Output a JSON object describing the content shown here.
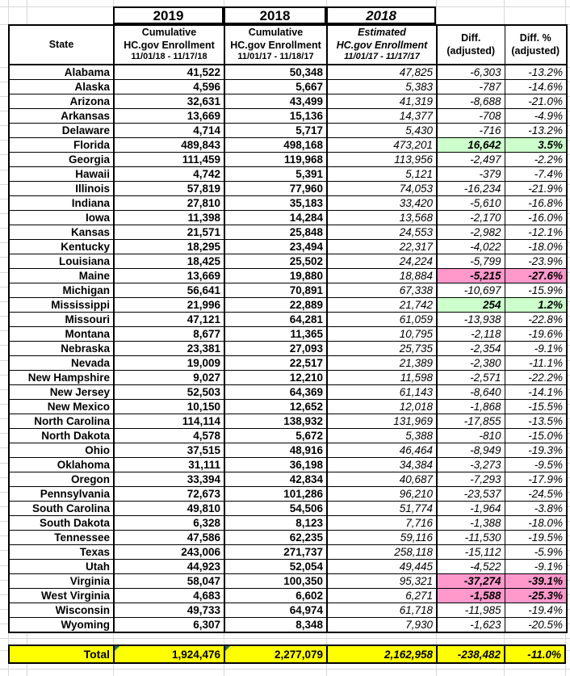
{
  "header": {
    "year_2019": "2019",
    "year_2018": "2018",
    "year_2018_est": "2018",
    "state_label": "State",
    "col_2019": [
      "Cumulative",
      "HC.gov Enrollment",
      "11/01/18 - 11/17/18"
    ],
    "col_2018": [
      "Cumulative",
      "HC.gov Enrollment",
      "11/01/17 - 11/18/17"
    ],
    "col_2018_est": [
      "Estimated",
      "HC.gov Enrollment",
      "11/01/17 - 11/17/17"
    ],
    "col_diff": [
      "Diff.",
      "(adjusted)"
    ],
    "col_diff_pct": [
      "Diff. %",
      "(adjusted)"
    ]
  },
  "rows": [
    {
      "state": "Alabama",
      "y2019": "41,522",
      "y2018": "50,348",
      "est": "47,825",
      "diff": "-6,303",
      "pct": "-13.2%",
      "hl": ""
    },
    {
      "state": "Alaska",
      "y2019": "4,596",
      "y2018": "5,667",
      "est": "5,383",
      "diff": "-787",
      "pct": "-14.6%",
      "hl": ""
    },
    {
      "state": "Arizona",
      "y2019": "32,631",
      "y2018": "43,499",
      "est": "41,319",
      "diff": "-8,688",
      "pct": "-21.0%",
      "hl": ""
    },
    {
      "state": "Arkansas",
      "y2019": "13,669",
      "y2018": "15,136",
      "est": "14,377",
      "diff": "-708",
      "pct": "-4.9%",
      "hl": ""
    },
    {
      "state": "Delaware",
      "y2019": "4,714",
      "y2018": "5,717",
      "est": "5,430",
      "diff": "-716",
      "pct": "-13.2%",
      "hl": ""
    },
    {
      "state": "Florida",
      "y2019": "489,843",
      "y2018": "498,168",
      "est": "473,201",
      "diff": "16,642",
      "pct": "3.5%",
      "hl": "green"
    },
    {
      "state": "Georgia",
      "y2019": "111,459",
      "y2018": "119,968",
      "est": "113,956",
      "diff": "-2,497",
      "pct": "-2.2%",
      "hl": ""
    },
    {
      "state": "Hawaii",
      "y2019": "4,742",
      "y2018": "5,391",
      "est": "5,121",
      "diff": "-379",
      "pct": "-7.4%",
      "hl": ""
    },
    {
      "state": "Illinois",
      "y2019": "57,819",
      "y2018": "77,960",
      "est": "74,053",
      "diff": "-16,234",
      "pct": "-21.9%",
      "hl": ""
    },
    {
      "state": "Indiana",
      "y2019": "27,810",
      "y2018": "35,183",
      "est": "33,420",
      "diff": "-5,610",
      "pct": "-16.8%",
      "hl": ""
    },
    {
      "state": "Iowa",
      "y2019": "11,398",
      "y2018": "14,284",
      "est": "13,568",
      "diff": "-2,170",
      "pct": "-16.0%",
      "hl": ""
    },
    {
      "state": "Kansas",
      "y2019": "21,571",
      "y2018": "25,848",
      "est": "24,553",
      "diff": "-2,982",
      "pct": "-12.1%",
      "hl": ""
    },
    {
      "state": "Kentucky",
      "y2019": "18,295",
      "y2018": "23,494",
      "est": "22,317",
      "diff": "-4,022",
      "pct": "-18.0%",
      "hl": ""
    },
    {
      "state": "Louisiana",
      "y2019": "18,425",
      "y2018": "25,502",
      "est": "24,224",
      "diff": "-5,799",
      "pct": "-23.9%",
      "hl": ""
    },
    {
      "state": "Maine",
      "y2019": "13,669",
      "y2018": "19,880",
      "est": "18,884",
      "diff": "-5,215",
      "pct": "-27.6%",
      "hl": "pink"
    },
    {
      "state": "Michigan",
      "y2019": "56,641",
      "y2018": "70,891",
      "est": "67,338",
      "diff": "-10,697",
      "pct": "-15.9%",
      "hl": ""
    },
    {
      "state": "Mississippi",
      "y2019": "21,996",
      "y2018": "22,889",
      "est": "21,742",
      "diff": "254",
      "pct": "1.2%",
      "hl": "green"
    },
    {
      "state": "Missouri",
      "y2019": "47,121",
      "y2018": "64,281",
      "est": "61,059",
      "diff": "-13,938",
      "pct": "-22.8%",
      "hl": ""
    },
    {
      "state": "Montana",
      "y2019": "8,677",
      "y2018": "11,365",
      "est": "10,795",
      "diff": "-2,118",
      "pct": "-19.6%",
      "hl": ""
    },
    {
      "state": "Nebraska",
      "y2019": "23,381",
      "y2018": "27,093",
      "est": "25,735",
      "diff": "-2,354",
      "pct": "-9.1%",
      "hl": ""
    },
    {
      "state": "Nevada",
      "y2019": "19,009",
      "y2018": "22,517",
      "est": "21,389",
      "diff": "-2,380",
      "pct": "-11.1%",
      "hl": ""
    },
    {
      "state": "New Hampshire",
      "y2019": "9,027",
      "y2018": "12,210",
      "est": "11,598",
      "diff": "-2,571",
      "pct": "-22.2%",
      "hl": ""
    },
    {
      "state": "New Jersey",
      "y2019": "52,503",
      "y2018": "64,369",
      "est": "61,143",
      "diff": "-8,640",
      "pct": "-14.1%",
      "hl": ""
    },
    {
      "state": "New Mexico",
      "y2019": "10,150",
      "y2018": "12,652",
      "est": "12,018",
      "diff": "-1,868",
      "pct": "-15.5%",
      "hl": ""
    },
    {
      "state": "North Carolina",
      "y2019": "114,114",
      "y2018": "138,932",
      "est": "131,969",
      "diff": "-17,855",
      "pct": "-13.5%",
      "hl": ""
    },
    {
      "state": "North Dakota",
      "y2019": "4,578",
      "y2018": "5,672",
      "est": "5,388",
      "diff": "-810",
      "pct": "-15.0%",
      "hl": ""
    },
    {
      "state": "Ohio",
      "y2019": "37,515",
      "y2018": "48,916",
      "est": "46,464",
      "diff": "-8,949",
      "pct": "-19.3%",
      "hl": ""
    },
    {
      "state": "Oklahoma",
      "y2019": "31,111",
      "y2018": "36,198",
      "est": "34,384",
      "diff": "-3,273",
      "pct": "-9.5%",
      "hl": ""
    },
    {
      "state": "Oregon",
      "y2019": "33,394",
      "y2018": "42,834",
      "est": "40,687",
      "diff": "-7,293",
      "pct": "-17.9%",
      "hl": ""
    },
    {
      "state": "Pennsylvania",
      "y2019": "72,673",
      "y2018": "101,286",
      "est": "96,210",
      "diff": "-23,537",
      "pct": "-24.5%",
      "hl": ""
    },
    {
      "state": "South Carolina",
      "y2019": "49,810",
      "y2018": "54,506",
      "est": "51,774",
      "diff": "-1,964",
      "pct": "-3.8%",
      "hl": ""
    },
    {
      "state": "South Dakota",
      "y2019": "6,328",
      "y2018": "8,123",
      "est": "7,716",
      "diff": "-1,388",
      "pct": "-18.0%",
      "hl": ""
    },
    {
      "state": "Tennessee",
      "y2019": "47,586",
      "y2018": "62,235",
      "est": "59,116",
      "diff": "-11,530",
      "pct": "-19.5%",
      "hl": ""
    },
    {
      "state": "Texas",
      "y2019": "243,006",
      "y2018": "271,737",
      "est": "258,118",
      "diff": "-15,112",
      "pct": "-5.9%",
      "hl": ""
    },
    {
      "state": "Utah",
      "y2019": "44,923",
      "y2018": "52,054",
      "est": "49,445",
      "diff": "-4,522",
      "pct": "-9.1%",
      "hl": ""
    },
    {
      "state": "Virginia",
      "y2019": "58,047",
      "y2018": "100,350",
      "est": "95,321",
      "diff": "-37,274",
      "pct": "-39.1%",
      "hl": "pink"
    },
    {
      "state": "West Virginia",
      "y2019": "4,683",
      "y2018": "6,602",
      "est": "6,271",
      "diff": "-1,588",
      "pct": "-25.3%",
      "hl": "pink"
    },
    {
      "state": "Wisconsin",
      "y2019": "49,733",
      "y2018": "64,974",
      "est": "61,718",
      "diff": "-11,985",
      "pct": "-19.4%",
      "hl": ""
    },
    {
      "state": "Wyoming",
      "y2019": "6,307",
      "y2018": "8,348",
      "est": "7,930",
      "diff": "-1,623",
      "pct": "-20.5%",
      "hl": ""
    }
  ],
  "total": {
    "label": "Total",
    "y2019": "1,924,476",
    "y2018": "2,277,079",
    "est": "2,162,958",
    "diff": "-238,482",
    "pct": "-11.0%"
  },
  "colors": {
    "highlight_green": "#CCFFCC",
    "highlight_pink": "#FF99CC",
    "total_yellow": "#FFFF00",
    "gridline": "#D8D8D8",
    "triangle_green": "#217346"
  }
}
